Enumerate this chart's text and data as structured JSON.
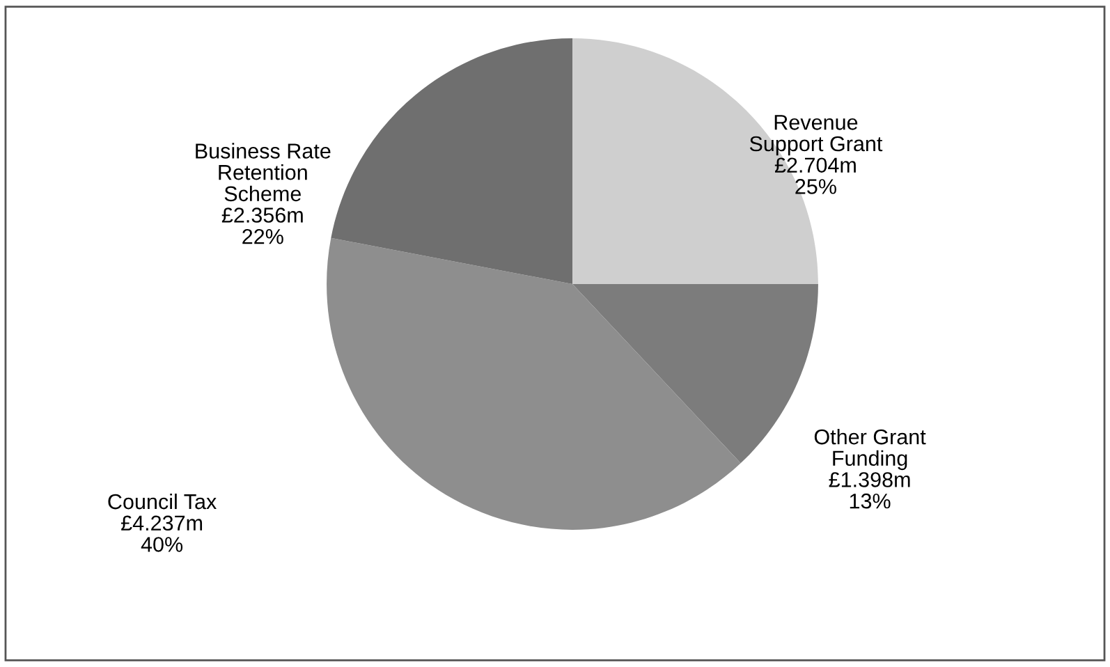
{
  "chart_data": {
    "type": "pie",
    "categories": [
      "Revenue\nSupport Grant",
      "Other Grant\nFunding",
      "Council Tax",
      "Business Rate\nRetention\nScheme"
    ],
    "values": [
      25,
      13,
      40,
      22
    ],
    "value_labels": [
      "£2.704m\n25%",
      "£1.398m\n13%",
      "£4.237m\n40%",
      "£2.356m\n22%"
    ],
    "colors": [
      "#cfcfcf",
      "#7c7c7c",
      "#8e8e8e",
      "#6f6f6f"
    ],
    "legend": false
  }
}
